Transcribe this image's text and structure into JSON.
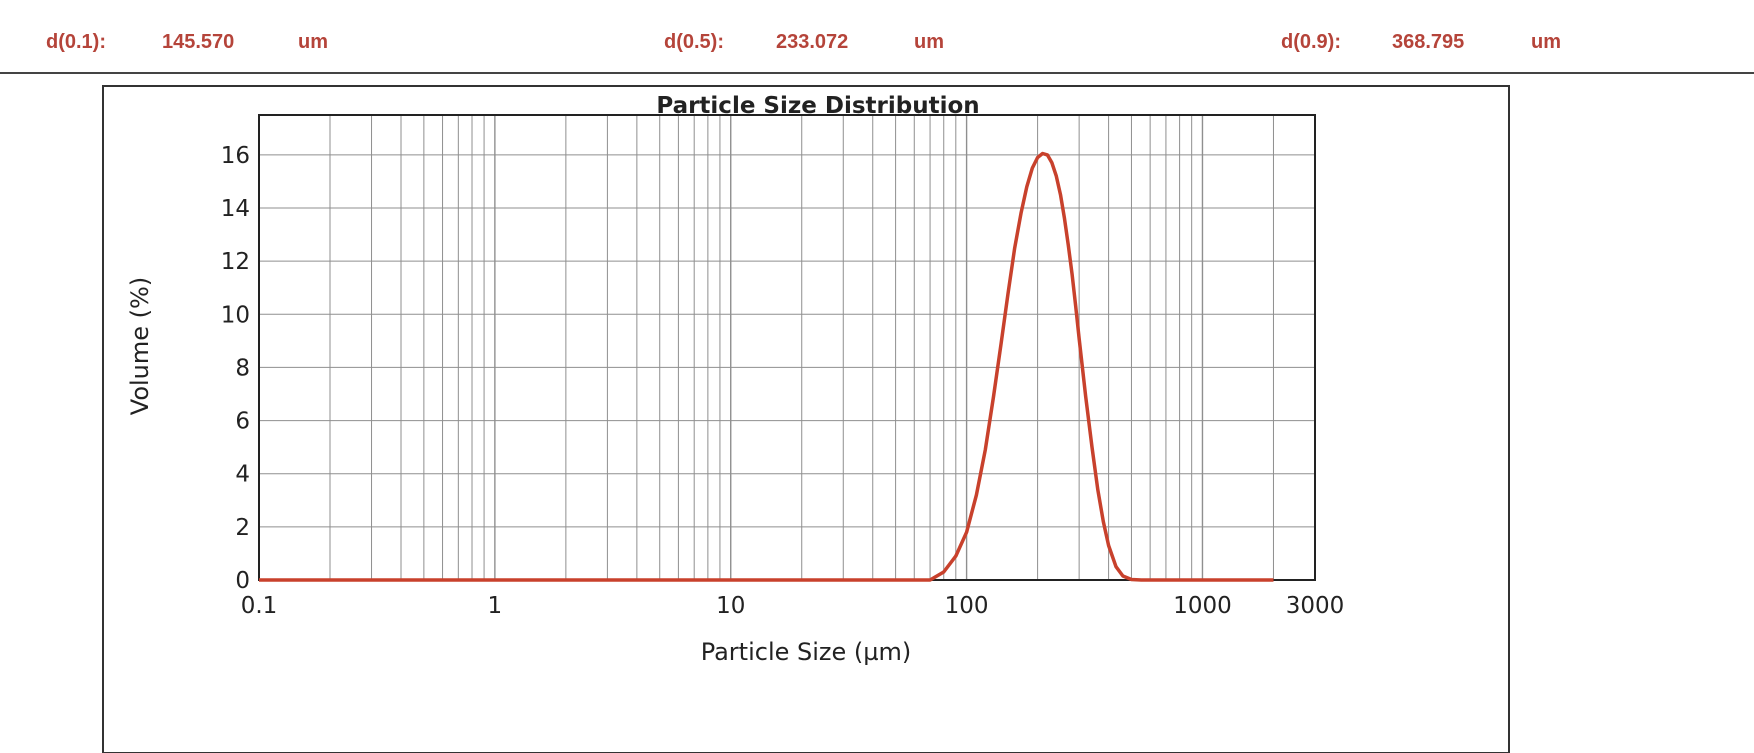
{
  "stats": [
    {
      "label": "d(0.1):",
      "value": "145.570",
      "unit": "um"
    },
    {
      "label": "d(0.5):",
      "value": "233.072",
      "unit": "um"
    },
    {
      "label": "d(0.9):",
      "value": "368.795",
      "unit": "um"
    }
  ],
  "colors": {
    "stat_text": "#b5443a",
    "curve": "#c8412c",
    "grid": "#8f8f8f",
    "axis": "#222222"
  },
  "chart_data": {
    "type": "line",
    "title": "Particle Size Distribution",
    "xlabel": "Particle Size (µm)",
    "ylabel": "Volume (%)",
    "x_scale": "log",
    "xlim": [
      0.1,
      3000
    ],
    "ylim": [
      0,
      17.5
    ],
    "x_ticks": [
      {
        "value": 0.1,
        "label": "0.1"
      },
      {
        "value": 1,
        "label": "1"
      },
      {
        "value": 10,
        "label": "10"
      },
      {
        "value": 100,
        "label": "100"
      },
      {
        "value": 1000,
        "label": "1000"
      },
      {
        "value": 3000,
        "label": "3000"
      }
    ],
    "y_ticks": [
      0,
      2,
      4,
      6,
      8,
      10,
      12,
      14,
      16
    ],
    "grid": true,
    "series": [
      {
        "x": [
          0.1,
          1,
          10,
          50,
          70,
          80,
          90,
          100,
          110,
          120,
          130,
          140,
          150,
          160,
          170,
          180,
          190,
          200,
          210,
          220,
          230,
          240,
          250,
          260,
          270,
          280,
          290,
          300,
          320,
          340,
          360,
          380,
          400,
          430,
          460,
          500,
          550,
          600,
          700,
          1000,
          2000
        ],
        "y": [
          0,
          0,
          0,
          0,
          0,
          0.3,
          0.9,
          1.8,
          3.2,
          4.9,
          6.9,
          8.9,
          10.8,
          12.5,
          13.8,
          14.8,
          15.5,
          15.9,
          16.05,
          16.0,
          15.7,
          15.2,
          14.5,
          13.6,
          12.6,
          11.5,
          10.3,
          9.1,
          6.9,
          5.0,
          3.4,
          2.2,
          1.3,
          0.5,
          0.15,
          0.02,
          0,
          0,
          0,
          0,
          0
        ]
      }
    ]
  }
}
